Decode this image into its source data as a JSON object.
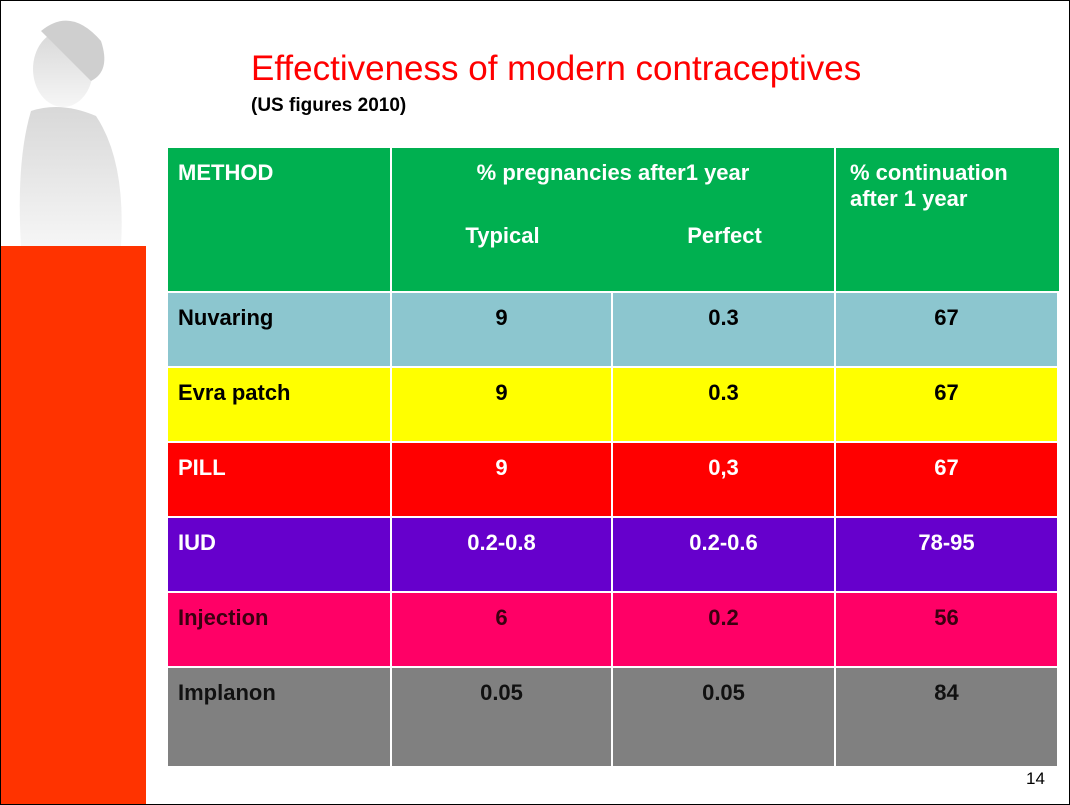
{
  "title": "Effectiveness of modern contraceptives",
  "subtitle": "(US figures 2010)",
  "table": {
    "header": {
      "method": "METHOD",
      "pregnancies": "% pregnancies after1 year",
      "typical": "Typical",
      "perfect": "Perfect",
      "continuation": "% continuation after 1 year"
    },
    "rows": [
      [
        "Nuvaring",
        "9",
        "0.3",
        "67"
      ],
      [
        "Evra patch",
        "9",
        "0.3",
        "67"
      ],
      [
        "PILL",
        "9",
        "0,3",
        "67"
      ],
      [
        "IUD",
        "0.2-0.8",
        "0.2-0.6",
        "78-95"
      ],
      [
        "Injection",
        "6",
        "0.2",
        "56"
      ],
      [
        "Implanon",
        "0.05",
        "0.05",
        "84"
      ]
    ]
  },
  "page_number": "14"
}
